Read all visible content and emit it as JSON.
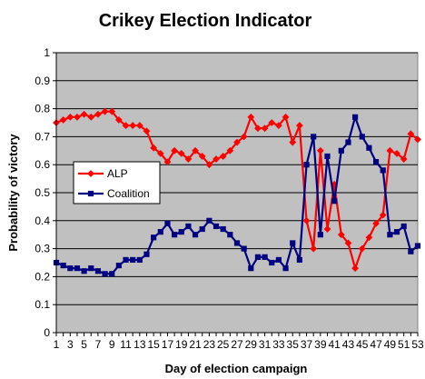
{
  "chart_data": {
    "type": "line",
    "title": "Crikey Election Indicator",
    "xlabel": "Day of election campaign",
    "ylabel": "Probability of victory",
    "ylim": [
      0,
      1
    ],
    "y_ticks": [
      "0",
      "0.1",
      "0.2",
      "0.3",
      "0.4",
      "0.5",
      "0.6",
      "0.7",
      "0.8",
      "0.9",
      "1"
    ],
    "x_tick_labels": [
      "1",
      "3",
      "5",
      "7",
      "9",
      "11",
      "13",
      "15",
      "17",
      "19",
      "21",
      "23",
      "25",
      "27",
      "29",
      "31",
      "33",
      "35",
      "37",
      "39",
      "41",
      "43",
      "45",
      "47",
      "49",
      "51",
      "53"
    ],
    "x": [
      1,
      2,
      3,
      4,
      5,
      6,
      7,
      8,
      9,
      10,
      11,
      12,
      13,
      14,
      15,
      16,
      17,
      18,
      19,
      20,
      21,
      22,
      23,
      24,
      25,
      26,
      27,
      28,
      29,
      30,
      31,
      32,
      33,
      34,
      35,
      36,
      37,
      38,
      39,
      40,
      41,
      42,
      43,
      44,
      45,
      46,
      47,
      48,
      49,
      50,
      51,
      52,
      53
    ],
    "grid": true,
    "legend_position": "left",
    "plot_background": "#c0c0c0",
    "series": [
      {
        "name": "ALP",
        "color": "#ff0000",
        "marker": "diamond",
        "values": [
          0.75,
          0.76,
          0.77,
          0.77,
          0.78,
          0.77,
          0.78,
          0.79,
          0.79,
          0.76,
          0.74,
          0.74,
          0.74,
          0.72,
          0.66,
          0.64,
          0.61,
          0.65,
          0.64,
          0.62,
          0.65,
          0.63,
          0.6,
          0.62,
          0.63,
          0.65,
          0.68,
          0.7,
          0.77,
          0.73,
          0.73,
          0.75,
          0.74,
          0.77,
          0.68,
          0.74,
          0.4,
          0.3,
          0.65,
          0.37,
          0.53,
          0.35,
          0.32,
          0.23,
          0.3,
          0.34,
          0.39,
          0.42,
          0.65,
          0.64,
          0.62,
          0.71,
          0.69
        ]
      },
      {
        "name": "Coalition",
        "color": "#000080",
        "marker": "square",
        "values": [
          0.25,
          0.24,
          0.23,
          0.23,
          0.22,
          0.23,
          0.22,
          0.21,
          0.21,
          0.24,
          0.26,
          0.26,
          0.26,
          0.28,
          0.34,
          0.36,
          0.39,
          0.35,
          0.36,
          0.38,
          0.35,
          0.37,
          0.4,
          0.38,
          0.37,
          0.35,
          0.32,
          0.3,
          0.23,
          0.27,
          0.27,
          0.25,
          0.26,
          0.23,
          0.32,
          0.26,
          0.6,
          0.7,
          0.35,
          0.63,
          0.47,
          0.65,
          0.68,
          0.77,
          0.7,
          0.66,
          0.61,
          0.58,
          0.35,
          0.36,
          0.38,
          0.29,
          0.31
        ]
      }
    ]
  }
}
